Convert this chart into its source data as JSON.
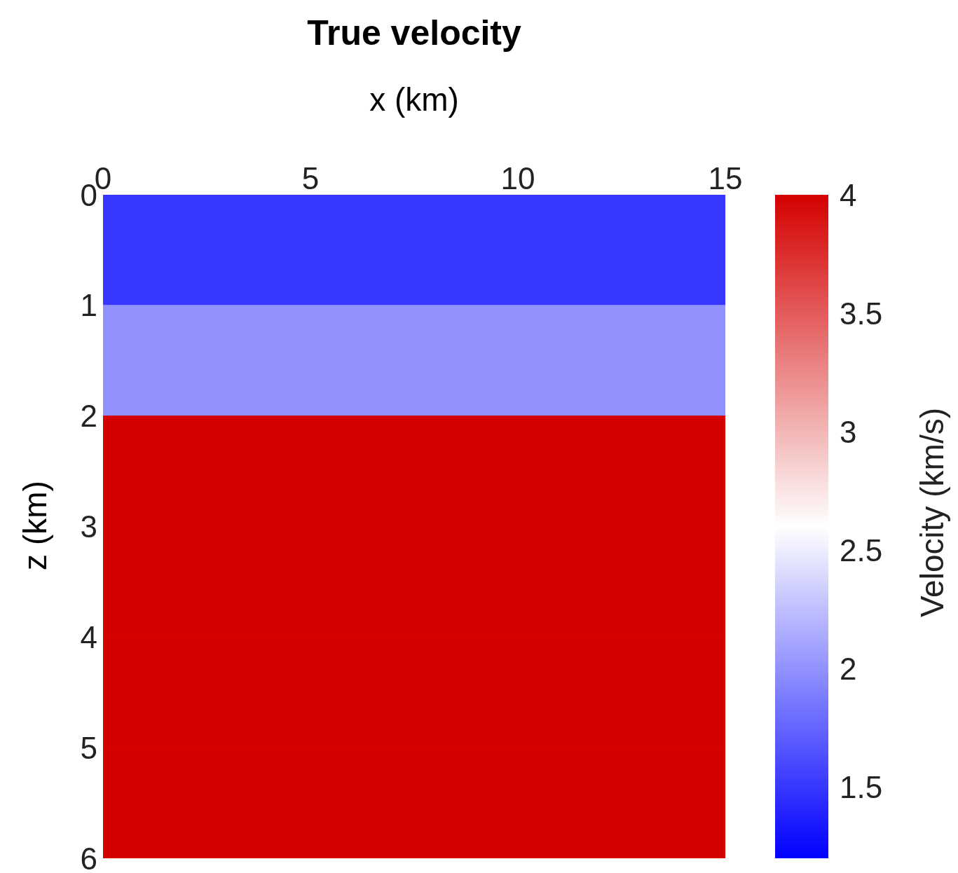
{
  "chart_data": {
    "type": "heatmap",
    "title": "True velocity",
    "xlabel": "x (km)",
    "ylabel": "z (km)",
    "clabel": "Velocity (km/s)",
    "xlim": [
      0,
      15
    ],
    "xticks": [
      0,
      5,
      10,
      15
    ],
    "ylim": [
      6,
      0
    ],
    "yticks": [
      0,
      1,
      2,
      3,
      4,
      5,
      6
    ],
    "cells": [
      [
        1.5
      ],
      [
        2.0
      ],
      [
        4
      ],
      [
        4
      ],
      [
        4
      ],
      [
        4
      ]
    ],
    "clim": [
      1.2,
      4
    ],
    "cticks": [
      1.5,
      2,
      2.5,
      3,
      3.5,
      4
    ]
  }
}
